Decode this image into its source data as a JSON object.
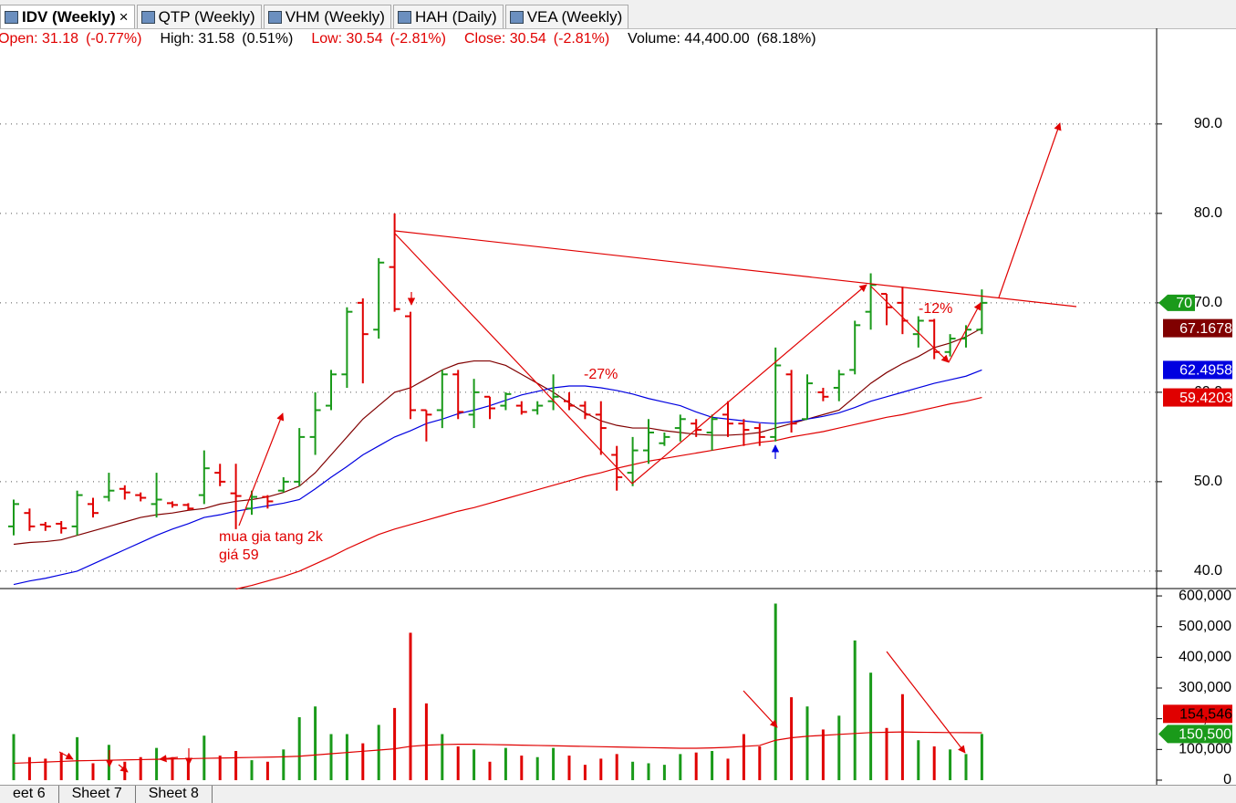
{
  "tabs": [
    "IDV (Weekly)",
    "QTP (Weekly)",
    "VHM (Weekly)",
    "HAH (Daily)",
    "VEA (Weekly)"
  ],
  "info": [
    {
      "label": "Open: 31.18",
      "change": "(-0.77%)",
      "color": "#e00000"
    },
    {
      "label": "High: 31.58",
      "change": "(0.51%)",
      "color": "#000000"
    },
    {
      "label": "Low: 30.54",
      "change": "(-2.81%)",
      "color": "#e00000"
    },
    {
      "label": "Close: 30.54",
      "change": "(-2.81%)",
      "color": "#e00000"
    },
    {
      "label": "Volume: 44,400.00",
      "change": "(68.18%)",
      "color": "#000000"
    }
  ],
  "sheets": [
    "eet 6",
    "Sheet 7",
    "Sheet 8"
  ],
  "chart_data": [
    {
      "type": "ohlc",
      "up_color": "#1a9a1a",
      "down_color": "#e00000",
      "ylim": [
        38,
        100.8
      ],
      "grid": true,
      "yticks": [
        {
          "value": 40,
          "label": "40.0"
        },
        {
          "value": 50,
          "label": "50.0"
        },
        {
          "value": 60,
          "label": "60.0"
        },
        {
          "value": 70,
          "label": "70.0"
        },
        {
          "value": 80,
          "label": "80.0"
        },
        {
          "value": 90,
          "label": "90.0"
        }
      ],
      "open": [
        45,
        46.5,
        45.2,
        45.3,
        45,
        47.5,
        48.3,
        49.2,
        48.5,
        47.5,
        47.6,
        47.4,
        48.5,
        51,
        48.7,
        47,
        48.3,
        49,
        50,
        55,
        58.5,
        62,
        70,
        67,
        74,
        68.5,
        58,
        58,
        62,
        57.5,
        59.5,
        58.5,
        58.5,
        58,
        59,
        59,
        58.5,
        57.5,
        53,
        51,
        53.5,
        54.3,
        56,
        56.5,
        55.5,
        57.5,
        56.5,
        56,
        55,
        62,
        57,
        60,
        60.5,
        62.5,
        69,
        71,
        70,
        66.5,
        68,
        64.5,
        66,
        67
      ],
      "high": [
        48,
        47,
        45.5,
        45.6,
        49,
        48.2,
        51,
        49.6,
        48.8,
        51,
        47.8,
        47.6,
        53.5,
        52,
        52,
        49,
        48.5,
        50.5,
        56,
        60,
        62.5,
        69.5,
        70.5,
        75,
        80,
        69,
        58,
        62.5,
        62.5,
        61.5,
        59.5,
        60,
        59,
        59,
        62,
        60,
        59,
        59,
        54,
        55,
        57,
        55.5,
        57.5,
        57,
        57.5,
        59,
        57,
        56.5,
        65,
        62.5,
        62,
        60.5,
        62.5,
        68,
        73.3,
        71,
        71.8,
        68.5,
        68.2,
        66.5,
        67.5,
        71.5
      ],
      "low": [
        44,
        44.5,
        44.5,
        44.2,
        44,
        46,
        47.8,
        48,
        47.8,
        46,
        47.1,
        46.8,
        47.5,
        49.5,
        44.7,
        46.3,
        47,
        48.8,
        49.5,
        53,
        58,
        60.5,
        61,
        66,
        69,
        57,
        54.5,
        56,
        57,
        56,
        57,
        58,
        57.5,
        57.5,
        58,
        58,
        57,
        53,
        49,
        49.5,
        52,
        54,
        54.5,
        55,
        53.5,
        55,
        54,
        54,
        54.5,
        55.5,
        57,
        59,
        59,
        62,
        67,
        67.5,
        66.5,
        65,
        63.7,
        64,
        65,
        66.5
      ],
      "close": [
        47.5,
        45,
        45,
        44.8,
        48.5,
        46.5,
        49,
        48.8,
        48.2,
        48,
        47.4,
        47,
        51.5,
        50,
        48.4,
        48.3,
        47.8,
        50,
        55,
        58,
        62,
        69,
        66.5,
        74.5,
        69.3,
        58,
        57.5,
        62,
        57.8,
        60,
        58.2,
        59.8,
        57.8,
        58.5,
        59.5,
        58.5,
        57.5,
        56,
        50.5,
        53.5,
        55.5,
        55,
        57,
        55.8,
        57,
        56.5,
        55.8,
        55,
        63,
        56.5,
        61,
        59.5,
        62,
        67.5,
        72,
        69.5,
        68,
        68,
        64.5,
        66,
        67,
        70
      ],
      "close_tag": 70,
      "series": [
        {
          "color": "#800000",
          "values": [
            43,
            43.2,
            43.3,
            43.5,
            44,
            44.5,
            45,
            45.5,
            46,
            46.3,
            46.5,
            46.8,
            47,
            47.5,
            47.8,
            48,
            48.3,
            48.8,
            49.5,
            51,
            53,
            55,
            57,
            58.5,
            60,
            60.5,
            61.5,
            62.5,
            63.2,
            63.5,
            63.5,
            63,
            62,
            61,
            60,
            58.8,
            57.7,
            56.8,
            56.3,
            56,
            56,
            55.7,
            55.5,
            55.3,
            55.2,
            55.2,
            55.3,
            55.5,
            56,
            56.5,
            57,
            57.5,
            58,
            59.5,
            61,
            62.2,
            63.2,
            64,
            65,
            65.5,
            66.2,
            67.1678
          ]
        },
        {
          "color": "#0000e0",
          "values": [
            38.5,
            38.9,
            39.2,
            39.6,
            40,
            40.8,
            41.6,
            42.4,
            43.2,
            44,
            44.7,
            45.3,
            46,
            46.3,
            46.7,
            47,
            47.3,
            47.6,
            48,
            49.2,
            50.5,
            51.7,
            53,
            54,
            55,
            55.7,
            56.5,
            57,
            57.6,
            58,
            58.5,
            59.1,
            59.7,
            60.1,
            60.5,
            60.7,
            60.7,
            60.5,
            60.2,
            59.8,
            59.3,
            58.9,
            58.5,
            57.8,
            57.2,
            57,
            56.8,
            56.6,
            56.5,
            56.7,
            57,
            57.3,
            57.7,
            58.3,
            59,
            59.5,
            60,
            60.5,
            61,
            61.4,
            61.8,
            62.4958
          ]
        },
        {
          "color": "#e00000",
          "values": [
            null,
            null,
            null,
            null,
            null,
            null,
            null,
            null,
            null,
            null,
            null,
            null,
            null,
            null,
            38,
            38.4,
            38.9,
            39.4,
            40,
            40.8,
            41.6,
            42.5,
            43.3,
            44.1,
            44.7,
            45.2,
            45.7,
            46.2,
            46.7,
            47.1,
            47.6,
            48.1,
            48.6,
            49.1,
            49.6,
            50.1,
            50.6,
            51,
            51.5,
            51.9,
            52.3,
            52.6,
            52.9,
            53.2,
            53.5,
            53.8,
            54.1,
            54.4,
            54.6,
            55,
            55.3,
            55.6,
            56,
            56.4,
            56.8,
            57.2,
            57.5,
            57.9,
            58.3,
            58.7,
            59,
            59.4203
          ]
        }
      ],
      "annotations": [
        "-27%",
        "-12%",
        "mua gia tang 2k",
        "giá 59"
      ]
    },
    {
      "type": "volume",
      "ylim": [
        -9000,
        618000
      ],
      "yticks": [
        {
          "value": 0,
          "label": "0"
        },
        {
          "value": 100000,
          "label": "100,000"
        },
        {
          "value": 200000,
          "label": "200,000"
        },
        {
          "value": 300000,
          "label": "300,000"
        },
        {
          "value": 400000,
          "label": "400,000"
        },
        {
          "value": 500000,
          "label": "500,000"
        },
        {
          "value": 600000,
          "label": "600,000"
        }
      ],
      "values": [
        150000,
        75000,
        70000,
        90000,
        140000,
        55000,
        115000,
        60000,
        75000,
        105000,
        75000,
        65000,
        145000,
        80000,
        95000,
        65000,
        60000,
        100000,
        205000,
        240000,
        150000,
        150000,
        120000,
        180000,
        235000,
        480000,
        250000,
        150000,
        110000,
        100000,
        60000,
        105000,
        80000,
        75000,
        105000,
        80000,
        50000,
        70000,
        85000,
        60000,
        55000,
        50000,
        85000,
        90000,
        95000,
        70000,
        150000,
        110000,
        575000,
        270000,
        240000,
        165000,
        210000,
        455000,
        350000,
        170000,
        280000,
        130000,
        110000,
        100000,
        85000,
        150500
      ],
      "value_labels": [
        null,
        null,
        null,
        null,
        null,
        null,
        null,
        null,
        null,
        null,
        null,
        null,
        null,
        null,
        null,
        null,
        null,
        null,
        null,
        null,
        null,
        null,
        null,
        null,
        null,
        null,
        null,
        null,
        null,
        null,
        null,
        null,
        null,
        null,
        null,
        null,
        null,
        null,
        null,
        null,
        null,
        null,
        null,
        null,
        null,
        null,
        null,
        null,
        null,
        null,
        null,
        null,
        null,
        null,
        null,
        null,
        null,
        null,
        null,
        null,
        null,
        "150,500"
      ],
      "ma": {
        "color": "#e00000",
        "values": [
          55000,
          57000,
          59000,
          61000,
          63000,
          64000,
          65000,
          66000,
          67000,
          68000,
          69000,
          70000,
          71000,
          72000,
          73000,
          74000,
          75000,
          76000,
          78000,
          82000,
          86000,
          90000,
          94000,
          98000,
          102000,
          110000,
          114000,
          116000,
          117000,
          117000,
          116000,
          115000,
          114000,
          113000,
          112000,
          111000,
          110000,
          109000,
          108000,
          107000,
          106000,
          105000,
          104000,
          104000,
          105000,
          107000,
          110000,
          113000,
          130000,
          138000,
          143000,
          146000,
          149000,
          152000,
          155000,
          156000,
          157000,
          156000,
          155500,
          155000,
          154800,
          154546
        ],
        "value_labels": [
          null,
          null,
          null,
          null,
          null,
          null,
          null,
          null,
          null,
          null,
          null,
          null,
          null,
          null,
          null,
          null,
          null,
          null,
          null,
          null,
          null,
          null,
          null,
          null,
          null,
          null,
          null,
          null,
          null,
          null,
          null,
          null,
          null,
          null,
          null,
          null,
          null,
          null,
          null,
          null,
          null,
          null,
          null,
          null,
          null,
          null,
          null,
          null,
          null,
          null,
          null,
          null,
          null,
          null,
          null,
          null,
          null,
          null,
          null,
          null,
          null,
          "154,546"
        ]
      }
    }
  ]
}
